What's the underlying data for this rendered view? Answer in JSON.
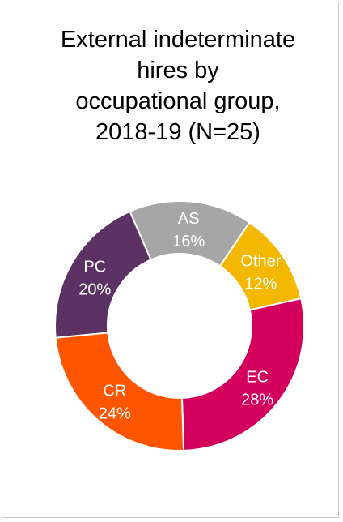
{
  "chart_data": {
    "type": "pie",
    "title_lines": [
      "External indeterminate",
      "hires by",
      "occupational group,",
      "2018-19 (N=25)"
    ],
    "slices": [
      {
        "name": "PC",
        "value": 20,
        "label": "20%",
        "color": "#5c3163"
      },
      {
        "name": "AS",
        "value": 16,
        "label": "16%",
        "color": "#a6a6a6"
      },
      {
        "name": "Other",
        "value": 12,
        "label": "12%",
        "color": "#f5b800"
      },
      {
        "name": "EC",
        "value": 28,
        "label": "28%",
        "color": "#d4005e"
      },
      {
        "name": "CR",
        "value": 24,
        "label": "24%",
        "color": "#ff5500"
      }
    ]
  }
}
